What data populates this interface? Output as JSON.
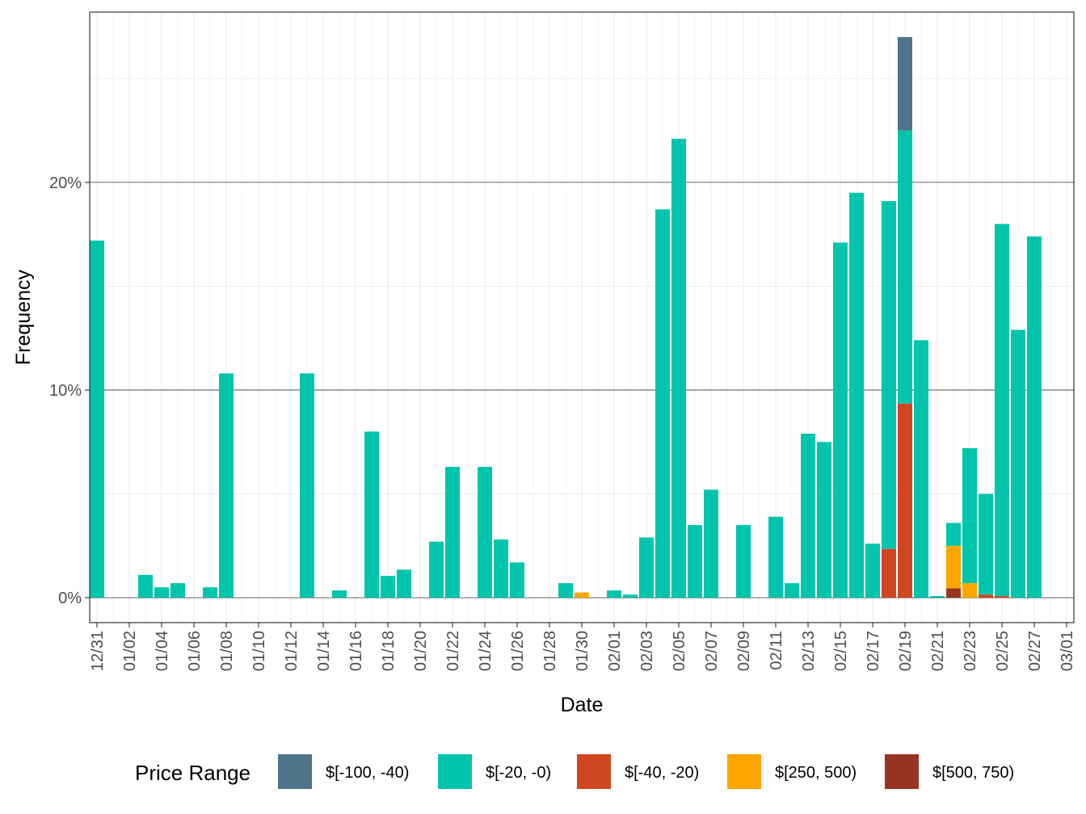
{
  "chart_data": {
    "type": "bar",
    "stacked": true,
    "xlabel": "Date",
    "ylabel": "Frequency",
    "ylim": [
      -0.012,
      0.282
    ],
    "y_ticks": [
      0,
      0.1,
      0.2
    ],
    "y_tick_labels": [
      "0%",
      "10%",
      "20%"
    ],
    "x_range": [
      "12/31",
      "03/01"
    ],
    "x_tick_labels": [
      "12/31",
      "01/02",
      "01/04",
      "01/06",
      "01/08",
      "01/10",
      "01/12",
      "01/14",
      "01/16",
      "01/18",
      "01/20",
      "01/22",
      "01/24",
      "01/26",
      "01/28",
      "01/30",
      "02/01",
      "02/03",
      "02/05",
      "02/07",
      "02/09",
      "02/11",
      "02/13",
      "02/15",
      "02/17",
      "02/19",
      "02/21",
      "02/23",
      "02/25",
      "02/27",
      "03/01"
    ],
    "grid": true,
    "legend": {
      "title": "Price Range",
      "position": "bottom"
    },
    "series": [
      {
        "name": "$[-100, -40)",
        "color": "#4e7489"
      },
      {
        "name": "$[-20, -0)",
        "color": "#00c5ac"
      },
      {
        "name": "$[-40, -20)",
        "color": "#d04621"
      },
      {
        "name": "$[250, 500)",
        "color": "#ffa500"
      },
      {
        "name": "$[500, 750)",
        "color": "#973323"
      }
    ],
    "bars": [
      {
        "date": "12/31",
        "values": {
          "$[-20, -0)": 0.172
        }
      },
      {
        "date": "01/03",
        "values": {
          "$[-20, -0)": 0.011
        }
      },
      {
        "date": "01/04",
        "values": {
          "$[-20, -0)": 0.005
        }
      },
      {
        "date": "01/05",
        "values": {
          "$[-20, -0)": 0.007
        }
      },
      {
        "date": "01/07",
        "values": {
          "$[-20, -0)": 0.005
        }
      },
      {
        "date": "01/08",
        "values": {
          "$[-20, -0)": 0.108
        }
      },
      {
        "date": "01/13",
        "values": {
          "$[-20, -0)": 0.108
        }
      },
      {
        "date": "01/15",
        "values": {
          "$[-20, -0)": 0.0035
        }
      },
      {
        "date": "01/17",
        "values": {
          "$[-20, -0)": 0.08
        }
      },
      {
        "date": "01/18",
        "values": {
          "$[-20, -0)": 0.0105
        }
      },
      {
        "date": "01/19",
        "values": {
          "$[-20, -0)": 0.0135
        }
      },
      {
        "date": "01/21",
        "values": {
          "$[-20, -0)": 0.027
        }
      },
      {
        "date": "01/22",
        "values": {
          "$[-20, -0)": 0.063
        }
      },
      {
        "date": "01/24",
        "values": {
          "$[-20, -0)": 0.063
        }
      },
      {
        "date": "01/25",
        "values": {
          "$[-20, -0)": 0.028
        }
      },
      {
        "date": "01/26",
        "values": {
          "$[-20, -0)": 0.017
        }
      },
      {
        "date": "01/29",
        "values": {
          "$[-20, -0)": 0.007
        }
      },
      {
        "date": "01/30",
        "values": {
          "$[250, 500)": 0.0025
        }
      },
      {
        "date": "02/01",
        "values": {
          "$[-20, -0)": 0.0035
        }
      },
      {
        "date": "02/02",
        "values": {
          "$[-20, -0)": 0.0015
        }
      },
      {
        "date": "02/03",
        "values": {
          "$[-20, -0)": 0.029
        }
      },
      {
        "date": "02/04",
        "values": {
          "$[-20, -0)": 0.187
        }
      },
      {
        "date": "02/05",
        "values": {
          "$[-20, -0)": 0.221
        }
      },
      {
        "date": "02/06",
        "values": {
          "$[-20, -0)": 0.035
        }
      },
      {
        "date": "02/07",
        "values": {
          "$[-20, -0)": 0.052
        }
      },
      {
        "date": "02/09",
        "values": {
          "$[-20, -0)": 0.035
        }
      },
      {
        "date": "02/11",
        "values": {
          "$[-20, -0)": 0.039
        }
      },
      {
        "date": "02/12",
        "values": {
          "$[-20, -0)": 0.007
        }
      },
      {
        "date": "02/13",
        "values": {
          "$[-20, -0)": 0.079
        }
      },
      {
        "date": "02/14",
        "values": {
          "$[-20, -0)": 0.075
        }
      },
      {
        "date": "02/15",
        "values": {
          "$[-20, -0)": 0.171
        }
      },
      {
        "date": "02/16",
        "values": {
          "$[-20, -0)": 0.195
        }
      },
      {
        "date": "02/17",
        "values": {
          "$[-20, -0)": 0.026
        }
      },
      {
        "date": "02/18",
        "values": {
          "$[-40, -20)": 0.0235,
          "$[-20, -0)": 0.1675
        }
      },
      {
        "date": "02/19",
        "values": {
          "$[-40, -20)": 0.0935,
          "$[-20, -0)": 0.1315,
          "$[-100, -40)": 0.045
        }
      },
      {
        "date": "02/20",
        "values": {
          "$[-20, -0)": 0.124
        }
      },
      {
        "date": "02/21",
        "values": {
          "$[-20, -0)": 0.0008
        }
      },
      {
        "date": "02/22",
        "values": {
          "$[500, 750)": 0.0045,
          "$[250, 500)": 0.0205,
          "$[-20, -0)": 0.011
        }
      },
      {
        "date": "02/23",
        "values": {
          "$[250, 500)": 0.007,
          "$[-20, -0)": 0.065
        }
      },
      {
        "date": "02/24",
        "values": {
          "$[-40, -20)": 0.0015,
          "$[-20, -0)": 0.0485
        }
      },
      {
        "date": "02/25",
        "values": {
          "$[-40, -20)": 0.0008,
          "$[-20, -0)": 0.1792
        }
      },
      {
        "date": "02/26",
        "values": {
          "$[-20, -0)": 0.129
        }
      },
      {
        "date": "02/27",
        "values": {
          "$[-20, -0)": 0.174
        }
      }
    ]
  }
}
